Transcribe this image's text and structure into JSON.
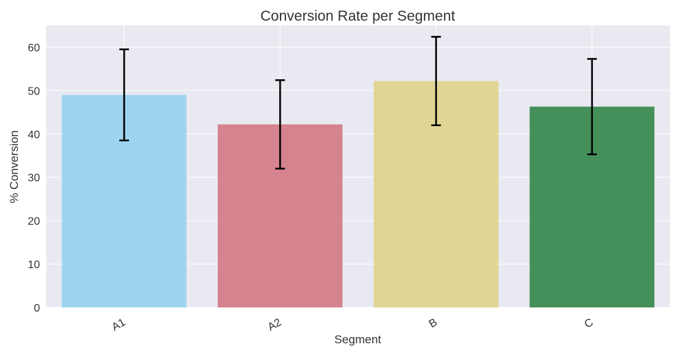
{
  "chart_data": {
    "type": "bar",
    "title": "Conversion Rate per Segment",
    "xlabel": "Segment",
    "ylabel": "% Conversion",
    "categories": [
      "A1",
      "A2",
      "B",
      "C"
    ],
    "values": [
      49.0,
      42.2,
      52.2,
      46.3
    ],
    "error": [
      10.5,
      10.2,
      10.2,
      11.0
    ],
    "colors": [
      "#9fd4f0",
      "#d4838f",
      "#e0d595",
      "#458f5a"
    ],
    "ylim": [
      0,
      65
    ],
    "yticks": [
      0,
      10,
      20,
      30,
      40,
      50,
      60
    ],
    "grid": true,
    "legend": "none",
    "background": "#e9e9f1",
    "grid_color": "#ffffff",
    "error_color": "#000000"
  }
}
